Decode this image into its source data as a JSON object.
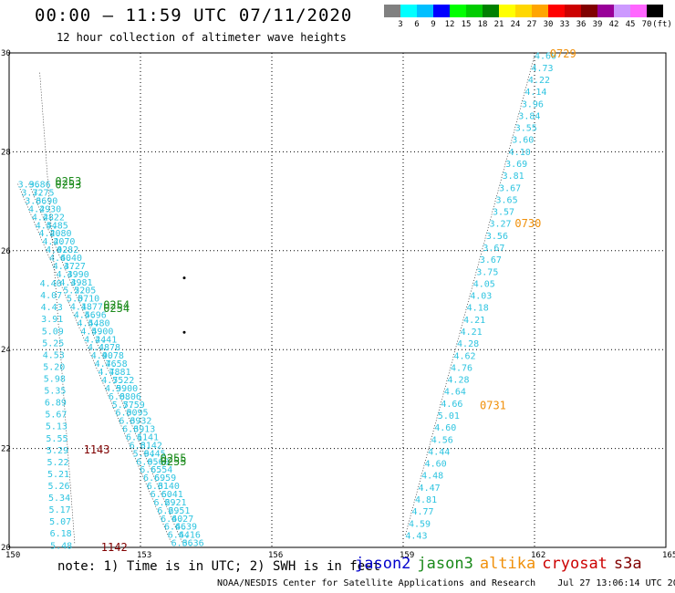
{
  "header": {
    "title": "00:00 – 11:59 UTC 07/11/2020",
    "subtitle": "12 hour collection of altimeter wave heights"
  },
  "color_scale": {
    "unit_label": "(ft)",
    "bins": [
      {
        "label": "3",
        "color": "#808080"
      },
      {
        "label": "6",
        "color": "#00ffff"
      },
      {
        "label": "9",
        "color": "#00bfff"
      },
      {
        "label": "12",
        "color": "#0000ff"
      },
      {
        "label": "15",
        "color": "#00ff00"
      },
      {
        "label": "18",
        "color": "#00cc00"
      },
      {
        "label": "21",
        "color": "#008000"
      },
      {
        "label": "24",
        "color": "#ffff00"
      },
      {
        "label": "27",
        "color": "#ffd700"
      },
      {
        "label": "30",
        "color": "#ffa500"
      },
      {
        "label": "33",
        "color": "#ff0000"
      },
      {
        "label": "36",
        "color": "#cc0000"
      },
      {
        "label": "39",
        "color": "#800000"
      },
      {
        "label": "42",
        "color": "#990099"
      },
      {
        "label": "45",
        "color": "#cc99ff"
      },
      {
        "label": "70",
        "color": "#ff66ff"
      },
      {
        "label": "",
        "color": "#000000"
      }
    ]
  },
  "map": {
    "lon_range": [
      150,
      165
    ],
    "lat_range": [
      20,
      30
    ],
    "lon_ticks": [
      "150",
      "153",
      "156",
      "159",
      "162",
      "165"
    ],
    "lat_ticks": [
      "30",
      "28",
      "26",
      "24",
      "22",
      "20"
    ],
    "colors": {
      "wave": "#2ec4e0",
      "jason2": "#0000cc",
      "jason3": "#1a8a1a",
      "altika": "#f0900a",
      "cryosat": "#cc0000",
      "s3a": "#800000",
      "track": "#000000"
    },
    "tracks": [
      {
        "lon_start": 150.2,
        "lat_start": 27.35,
        "lon_end": 153.7,
        "lat_end": 20.1,
        "values": [
          "3.96",
          "3.72",
          "3.66",
          "4.29",
          "4.28",
          "4.54",
          "4.20",
          "4.20",
          "4.02",
          "4.60",
          "4.37",
          "4.39",
          "4.39",
          "5.22",
          "5.07",
          "4.18",
          "4.56",
          "4.54",
          "4.49",
          "4.24",
          "4.48",
          "4.90",
          "4.76",
          "4.78",
          "4.75",
          "4.99",
          "6.08",
          "5.77",
          "6.00",
          "6.39",
          "6.39",
          "6.11",
          "6.31",
          "5.94",
          "6.05",
          "6.65",
          "6.69",
          "6.31",
          "6.60",
          "6.29",
          "6.29",
          "6.40",
          "6.46",
          "6.44",
          "6.36"
        ]
      },
      {
        "lon_start": 150.45,
        "lat_start": 27.35,
        "lon_end": 153.95,
        "lat_end": 20.1,
        "values": [
          "3.86",
          "3.75",
          "3.90",
          "4.30",
          "4.22",
          "4.85",
          "4.80",
          "4.70",
          "4.82",
          "4.40",
          "4.27",
          "4.90",
          "4.81",
          "5.05",
          "5.10",
          "4.77",
          "4.96",
          "4.80",
          "5.00",
          "4.41",
          "4.78",
          "4.78",
          "4.58",
          "4.81",
          "5.22",
          "5.00",
          "6.06",
          "5.59",
          "5.95",
          "6.32",
          "6.13",
          "6.41",
          "6.42",
          "6.45",
          "6.60",
          "6.54",
          "6.59",
          "6.40",
          "6.41",
          "6.21",
          "6.51",
          "6.27",
          "6.39",
          "6.16",
          "6.36"
        ]
      },
      {
        "lon_start": 150.7,
        "lat_start": 29.6,
        "lon_end": 151.5,
        "lat_end": 20.05,
        "values": [
          "4.40",
          "4.07",
          "4.43",
          "3.91",
          "5.09",
          "5.25",
          "4.53",
          "5.20",
          "5.98",
          "5.35",
          "6.89",
          "5.67",
          "5.13",
          "5.55",
          "5.29",
          "5.22",
          "5.21",
          "5.26",
          "5.34",
          "5.17",
          "5.07",
          "6.18",
          "5.48"
        ],
        "lat_first": 25.35
      },
      {
        "lon_start": 162.0,
        "lat_start": 29.95,
        "lon_end": 159.05,
        "lat_end": 20.25,
        "values": [
          "4.60",
          "4.73",
          "4.22",
          "4.14",
          "3.96",
          "3.84",
          "3.55",
          "3.60",
          "4.10",
          "3.69",
          "3.81",
          "3.67",
          "3.65",
          "3.57",
          "3.27",
          "3.56",
          "3.67",
          "3.67",
          "3.75",
          "4.05",
          "4.03",
          "4.18",
          "4.21",
          "4.21",
          "4.28",
          "4.62",
          "4.76",
          "4.28",
          "4.64",
          "4.66",
          "5.01",
          "4.60",
          "4.56",
          "4.44",
          "4.60",
          "4.48",
          "4.47",
          "4.81",
          "4.77",
          "4.59",
          "4.43"
        ]
      }
    ],
    "pass_labels": [
      {
        "text": "0253",
        "lon": 151.05,
        "lat": 27.4,
        "sat": "jason3"
      },
      {
        "text": "0253",
        "lon": 151.05,
        "lat": 27.33,
        "sat": "jason3"
      },
      {
        "text": "0254",
        "lon": 152.15,
        "lat": 24.9,
        "sat": "jason3"
      },
      {
        "text": "0254",
        "lon": 152.15,
        "lat": 24.83,
        "sat": "jason3"
      },
      {
        "text": "0255",
        "lon": 153.45,
        "lat": 21.8,
        "sat": "jason3"
      },
      {
        "text": "0255",
        "lon": 153.45,
        "lat": 21.73,
        "sat": "jason3"
      },
      {
        "text": "0729",
        "lon": 162.35,
        "lat": 29.98,
        "sat": "altika"
      },
      {
        "text": "0730",
        "lon": 161.55,
        "lat": 26.55,
        "sat": "altika"
      },
      {
        "text": "0731",
        "lon": 160.75,
        "lat": 22.87,
        "sat": "altika"
      },
      {
        "text": "1143",
        "lon": 151.7,
        "lat": 21.97,
        "sat": "s3a"
      },
      {
        "text": "1142",
        "lon": 152.1,
        "lat": 20.0,
        "sat": "s3a"
      }
    ],
    "points": [
      {
        "lon": 154.0,
        "lat": 25.45
      },
      {
        "lon": 154.0,
        "lat": 24.35
      }
    ]
  },
  "footer": {
    "note": "note: 1) Time is in UTC; 2) SWH is in feet",
    "legend": [
      {
        "label": "jason2",
        "color": "#0000cc"
      },
      {
        "label": "jason3",
        "color": "#1a8a1a"
      },
      {
        "label": "altika",
        "color": "#f0900a"
      },
      {
        "label": "cryosat",
        "color": "#cc0000"
      },
      {
        "label": "s3a",
        "color": "#800000"
      }
    ],
    "credit": "NOAA/NESDIS Center for Satellite Applications and Research    Jul 27 13:06:14 UTC 2020"
  }
}
